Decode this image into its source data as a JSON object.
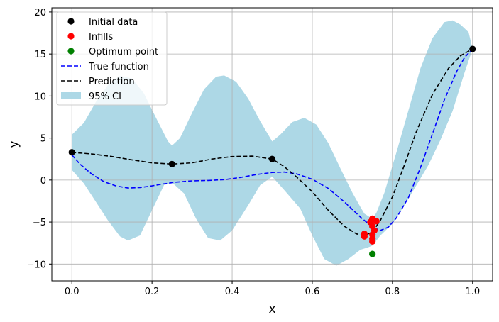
{
  "chart_data": {
    "type": "line",
    "xlabel": "x",
    "ylabel": "y",
    "xlim": [
      -0.05,
      1.05
    ],
    "ylim": [
      -12,
      20.5
    ],
    "x_ticks": [
      0.0,
      0.2,
      0.4,
      0.6,
      0.8,
      1.0
    ],
    "x_tick_labels": [
      "0.0",
      "0.2",
      "0.4",
      "0.6",
      "0.8",
      "1.0"
    ],
    "y_ticks": [
      -10,
      -5,
      0,
      5,
      10,
      15,
      20
    ],
    "y_tick_labels": [
      "−10",
      "−5",
      "0",
      "5",
      "10",
      "15",
      "20"
    ],
    "grid": true,
    "legend_position": "top-left",
    "legend": [
      {
        "label": "Initial data",
        "kind": "dot",
        "color": "#000000"
      },
      {
        "label": "Infills",
        "kind": "dot",
        "color": "#ff0000"
      },
      {
        "label": "Optimum point",
        "kind": "dot",
        "color": "#008000"
      },
      {
        "label": "True function",
        "kind": "dash",
        "color": "#0000ff"
      },
      {
        "label": "Prediction",
        "kind": "dash",
        "color": "#000000"
      },
      {
        "label": "95% CI",
        "kind": "patch",
        "color": "#add8e6"
      }
    ],
    "series": [
      {
        "name": "True function",
        "color": "#0000ff",
        "style": "dashed",
        "points": [
          [
            0.0,
            3.0
          ],
          [
            0.02,
            1.9
          ],
          [
            0.05,
            0.7
          ],
          [
            0.08,
            -0.2
          ],
          [
            0.11,
            -0.7
          ],
          [
            0.14,
            -0.95
          ],
          [
            0.17,
            -0.9
          ],
          [
            0.2,
            -0.7
          ],
          [
            0.23,
            -0.45
          ],
          [
            0.26,
            -0.25
          ],
          [
            0.3,
            -0.1
          ],
          [
            0.34,
            -0.05
          ],
          [
            0.38,
            0.05
          ],
          [
            0.42,
            0.3
          ],
          [
            0.46,
            0.65
          ],
          [
            0.5,
            0.9
          ],
          [
            0.53,
            0.95
          ],
          [
            0.56,
            0.75
          ],
          [
            0.6,
            0.1
          ],
          [
            0.64,
            -1.0
          ],
          [
            0.68,
            -2.6
          ],
          [
            0.72,
            -4.4
          ],
          [
            0.75,
            -5.6
          ],
          [
            0.77,
            -6.0
          ],
          [
            0.79,
            -5.6
          ],
          [
            0.81,
            -4.5
          ],
          [
            0.84,
            -2.1
          ],
          [
            0.87,
            1.5
          ],
          [
            0.9,
            5.5
          ],
          [
            0.93,
            9.6
          ],
          [
            0.96,
            12.9
          ],
          [
            0.98,
            14.6
          ],
          [
            1.0,
            15.6
          ]
        ]
      },
      {
        "name": "Prediction",
        "color": "#000000",
        "style": "dashed",
        "points": [
          [
            0.0,
            3.3
          ],
          [
            0.05,
            3.1
          ],
          [
            0.1,
            2.8
          ],
          [
            0.15,
            2.4
          ],
          [
            0.2,
            2.05
          ],
          [
            0.25,
            1.9
          ],
          [
            0.3,
            2.05
          ],
          [
            0.35,
            2.5
          ],
          [
            0.4,
            2.8
          ],
          [
            0.45,
            2.85
          ],
          [
            0.5,
            2.5
          ],
          [
            0.53,
            1.6
          ],
          [
            0.56,
            0.4
          ],
          [
            0.6,
            -1.4
          ],
          [
            0.64,
            -3.6
          ],
          [
            0.68,
            -5.5
          ],
          [
            0.71,
            -6.4
          ],
          [
            0.73,
            -6.6
          ],
          [
            0.75,
            -6.2
          ],
          [
            0.77,
            -4.8
          ],
          [
            0.8,
            -2.0
          ],
          [
            0.83,
            1.8
          ],
          [
            0.86,
            5.8
          ],
          [
            0.9,
            10.2
          ],
          [
            0.94,
            13.3
          ],
          [
            0.97,
            14.8
          ],
          [
            1.0,
            15.6
          ]
        ]
      }
    ],
    "confidence_band": {
      "name": "95% CI",
      "color": "#add8e6",
      "upper": [
        [
          0.0,
          5.4
        ],
        [
          0.03,
          6.8
        ],
        [
          0.06,
          9.3
        ],
        [
          0.09,
          11.3
        ],
        [
          0.12,
          12.4
        ],
        [
          0.15,
          12.1
        ],
        [
          0.18,
          10.3
        ],
        [
          0.21,
          7.4
        ],
        [
          0.24,
          4.6
        ],
        [
          0.25,
          4.1
        ],
        [
          0.27,
          5.0
        ],
        [
          0.3,
          8.0
        ],
        [
          0.33,
          10.8
        ],
        [
          0.36,
          12.3
        ],
        [
          0.38,
          12.45
        ],
        [
          0.41,
          11.7
        ],
        [
          0.44,
          9.7
        ],
        [
          0.47,
          7.0
        ],
        [
          0.5,
          4.6
        ],
        [
          0.52,
          5.4
        ],
        [
          0.55,
          6.9
        ],
        [
          0.58,
          7.4
        ],
        [
          0.61,
          6.6
        ],
        [
          0.64,
          4.4
        ],
        [
          0.67,
          1.4
        ],
        [
          0.7,
          -1.5
        ],
        [
          0.72,
          -3.2
        ],
        [
          0.73,
          -4.0
        ],
        [
          0.75,
          -4.6
        ],
        [
          0.76,
          -3.9
        ],
        [
          0.78,
          -1.5
        ],
        [
          0.81,
          3.3
        ],
        [
          0.84,
          8.3
        ],
        [
          0.87,
          13.3
        ],
        [
          0.9,
          16.9
        ],
        [
          0.93,
          18.8
        ],
        [
          0.95,
          19.0
        ],
        [
          0.97,
          18.5
        ],
        [
          0.99,
          17.6
        ],
        [
          1.0,
          15.6
        ]
      ],
      "lower": [
        [
          0.0,
          1.2
        ],
        [
          0.03,
          -0.4
        ],
        [
          0.06,
          -2.6
        ],
        [
          0.09,
          -4.8
        ],
        [
          0.12,
          -6.7
        ],
        [
          0.14,
          -7.2
        ],
        [
          0.17,
          -6.6
        ],
        [
          0.2,
          -3.6
        ],
        [
          0.23,
          -0.6
        ],
        [
          0.25,
          -0.3
        ],
        [
          0.28,
          -1.6
        ],
        [
          0.31,
          -4.6
        ],
        [
          0.34,
          -6.9
        ],
        [
          0.37,
          -7.2
        ],
        [
          0.4,
          -6.0
        ],
        [
          0.44,
          -3.0
        ],
        [
          0.47,
          -0.6
        ],
        [
          0.5,
          0.4
        ],
        [
          0.53,
          -1.2
        ],
        [
          0.57,
          -3.4
        ],
        [
          0.6,
          -6.6
        ],
        [
          0.63,
          -9.4
        ],
        [
          0.66,
          -10.2
        ],
        [
          0.69,
          -9.4
        ],
        [
          0.72,
          -8.3
        ],
        [
          0.74,
          -8.0
        ],
        [
          0.75,
          -7.8
        ],
        [
          0.77,
          -6.6
        ],
        [
          0.8,
          -5.2
        ],
        [
          0.83,
          -3.0
        ],
        [
          0.86,
          -0.6
        ],
        [
          0.89,
          1.8
        ],
        [
          0.92,
          4.8
        ],
        [
          0.95,
          8.2
        ],
        [
          0.98,
          12.8
        ],
        [
          1.0,
          15.6
        ]
      ]
    },
    "scatter": [
      {
        "name": "Initial data",
        "color": "#000000",
        "points": [
          [
            0.0,
            3.3
          ],
          [
            0.25,
            1.9
          ],
          [
            0.5,
            2.5
          ],
          [
            1.0,
            15.6
          ]
        ]
      },
      {
        "name": "Infills",
        "color": "#ff0000",
        "points": [
          [
            0.73,
            -6.4
          ],
          [
            0.73,
            -6.7
          ],
          [
            0.745,
            -5.0
          ],
          [
            0.75,
            -4.6
          ],
          [
            0.75,
            -5.5
          ],
          [
            0.75,
            -6.5
          ],
          [
            0.75,
            -7.0
          ],
          [
            0.75,
            -7.3
          ],
          [
            0.76,
            -4.9
          ],
          [
            0.755,
            -6.0
          ]
        ]
      },
      {
        "name": "Optimum point",
        "color": "#008000",
        "points": [
          [
            0.75,
            -8.8
          ]
        ]
      }
    ]
  }
}
